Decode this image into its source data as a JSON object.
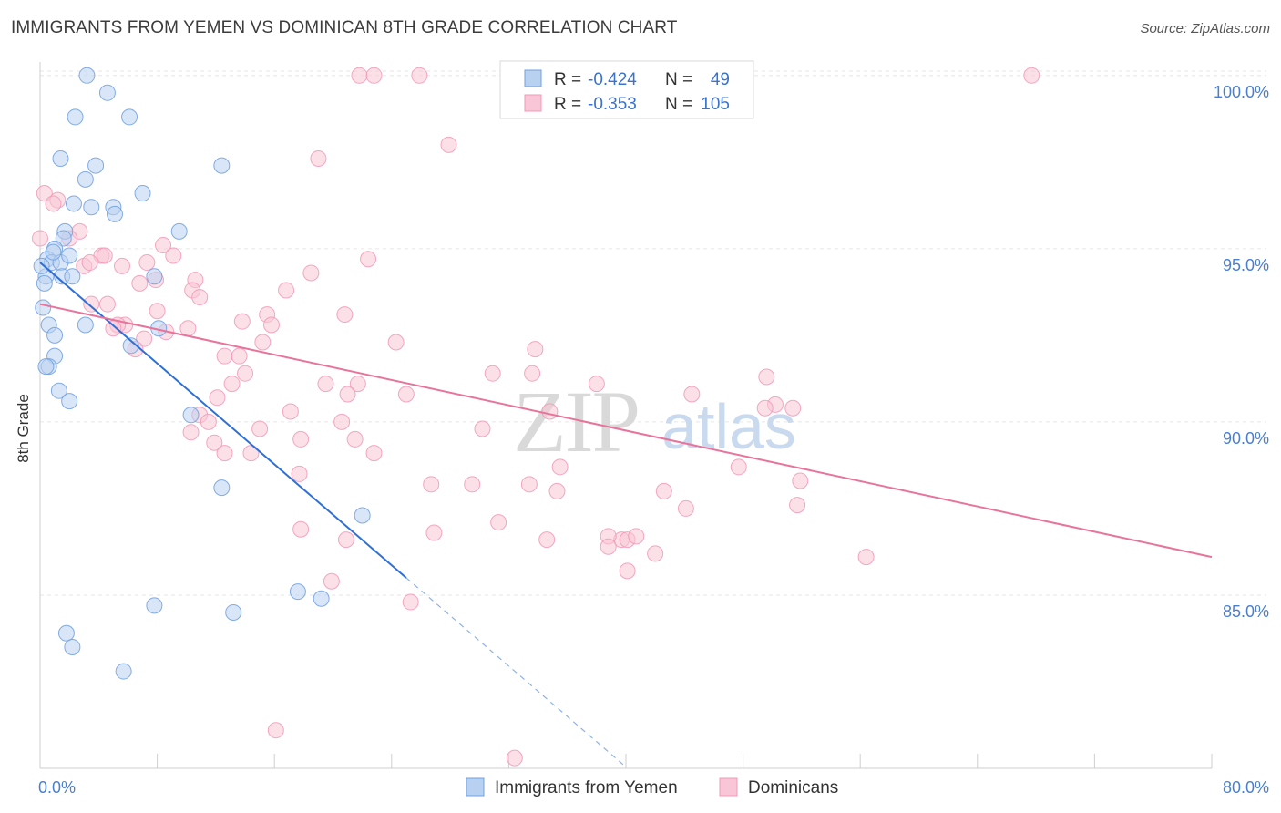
{
  "header": {
    "title": "IMMIGRANTS FROM YEMEN VS DOMINICAN 8TH GRADE CORRELATION CHART",
    "source": "Source: ZipAtlas.com"
  },
  "watermark": {
    "zip": "ZIP",
    "atlas": "atlas"
  },
  "legend_top": {
    "rows": [
      {
        "r_label": "R =",
        "r_value": "-0.424",
        "n_label": "N =",
        "n_value": "49",
        "color": "#6f9fe0"
      },
      {
        "r_label": "R =",
        "r_value": "-0.353",
        "n_label": "N =",
        "n_value": "105",
        "color": "#f199b6"
      }
    ]
  },
  "chart_data": {
    "type": "scatter",
    "title": "IMMIGRANTS FROM YEMEN VS DOMINICAN 8TH GRADE CORRELATION CHART",
    "xlabel": "",
    "ylabel": "8th Grade",
    "xlim": [
      0,
      80
    ],
    "ylim": [
      80,
      100.6
    ],
    "x_tick_labels": [
      "0.0%",
      "80.0%"
    ],
    "y_ticks": [
      85,
      90,
      95,
      100
    ],
    "y_tick_labels": [
      "85.0%",
      "90.0%",
      "95.0%",
      "100.0%"
    ],
    "grid": true,
    "legend_position": "bottom",
    "series": [
      {
        "name": "Immigrants from Yemen",
        "color": "#6f9fe0",
        "fill": "#b9d1f1",
        "r": -0.424,
        "n": 49,
        "trend": {
          "x0": 0.0,
          "y0": 94.6,
          "x1": 25.0,
          "y1": 85.5,
          "dash_to_x": 40.0
        },
        "points": [
          [
            3.2,
            100.0
          ],
          [
            4.6,
            99.5
          ],
          [
            2.4,
            98.8
          ],
          [
            6.1,
            98.8
          ],
          [
            1.4,
            97.6
          ],
          [
            3.8,
            97.4
          ],
          [
            12.4,
            97.4
          ],
          [
            3.1,
            97.0
          ],
          [
            7.0,
            96.6
          ],
          [
            2.3,
            96.3
          ],
          [
            3.5,
            96.2
          ],
          [
            5.0,
            96.2
          ],
          [
            5.1,
            96.0
          ],
          [
            1.7,
            95.5
          ],
          [
            9.5,
            95.5
          ],
          [
            1.6,
            95.3
          ],
          [
            1.0,
            95.0
          ],
          [
            0.5,
            94.7
          ],
          [
            0.8,
            94.6
          ],
          [
            1.4,
            94.6
          ],
          [
            2.0,
            94.8
          ],
          [
            0.4,
            94.2
          ],
          [
            1.5,
            94.2
          ],
          [
            2.2,
            94.2
          ],
          [
            7.8,
            94.2
          ],
          [
            0.3,
            94.0
          ],
          [
            0.2,
            93.3
          ],
          [
            0.6,
            92.8
          ],
          [
            3.1,
            92.8
          ],
          [
            8.1,
            92.7
          ],
          [
            1.0,
            92.5
          ],
          [
            6.2,
            92.2
          ],
          [
            1.0,
            91.9
          ],
          [
            0.6,
            91.6
          ],
          [
            0.4,
            91.6
          ],
          [
            1.3,
            90.9
          ],
          [
            2.0,
            90.6
          ],
          [
            10.3,
            90.2
          ],
          [
            12.4,
            88.1
          ],
          [
            22.0,
            87.3
          ],
          [
            17.6,
            85.1
          ],
          [
            19.2,
            84.9
          ],
          [
            7.8,
            84.7
          ],
          [
            13.2,
            84.5
          ],
          [
            1.8,
            83.9
          ],
          [
            2.2,
            83.5
          ],
          [
            5.7,
            82.8
          ],
          [
            0.1,
            94.5
          ],
          [
            0.9,
            94.9
          ]
        ]
      },
      {
        "name": "Dominicans",
        "color": "#f199b6",
        "fill": "#f8c6d6",
        "r": -0.353,
        "n": 105,
        "trend": {
          "x0": 0.0,
          "y0": 93.4,
          "x1": 80.0,
          "y1": 86.1
        },
        "points": [
          [
            21.8,
            100.0
          ],
          [
            22.8,
            100.0
          ],
          [
            25.9,
            100.0
          ],
          [
            32.0,
            100.0
          ],
          [
            67.7,
            100.0
          ],
          [
            27.9,
            98.0
          ],
          [
            19.0,
            97.6
          ],
          [
            0.3,
            96.6
          ],
          [
            1.2,
            96.4
          ],
          [
            0.9,
            96.3
          ],
          [
            2.7,
            95.5
          ],
          [
            2.0,
            95.3
          ],
          [
            0.0,
            95.3
          ],
          [
            8.4,
            95.1
          ],
          [
            4.2,
            94.8
          ],
          [
            4.4,
            94.8
          ],
          [
            9.1,
            94.8
          ],
          [
            7.3,
            94.6
          ],
          [
            22.4,
            94.7
          ],
          [
            3.0,
            94.5
          ],
          [
            3.4,
            94.6
          ],
          [
            5.6,
            94.5
          ],
          [
            18.5,
            94.3
          ],
          [
            7.9,
            94.1
          ],
          [
            10.6,
            94.1
          ],
          [
            6.8,
            94.0
          ],
          [
            10.4,
            93.8
          ],
          [
            16.8,
            93.8
          ],
          [
            10.9,
            93.6
          ],
          [
            3.5,
            93.4
          ],
          [
            4.6,
            93.4
          ],
          [
            8.0,
            93.2
          ],
          [
            20.8,
            93.1
          ],
          [
            15.5,
            93.1
          ],
          [
            13.8,
            92.9
          ],
          [
            5.8,
            92.8
          ],
          [
            5.3,
            92.8
          ],
          [
            15.8,
            92.8
          ],
          [
            5.0,
            92.7
          ],
          [
            10.1,
            92.7
          ],
          [
            8.6,
            92.6
          ],
          [
            7.1,
            92.4
          ],
          [
            24.3,
            92.3
          ],
          [
            15.2,
            92.3
          ],
          [
            6.5,
            92.1
          ],
          [
            33.8,
            92.1
          ],
          [
            12.6,
            91.9
          ],
          [
            13.6,
            91.9
          ],
          [
            30.9,
            91.4
          ],
          [
            33.6,
            91.4
          ],
          [
            14.0,
            91.4
          ],
          [
            13.1,
            91.1
          ],
          [
            19.5,
            91.1
          ],
          [
            21.7,
            91.1
          ],
          [
            38.0,
            91.1
          ],
          [
            49.6,
            91.3
          ],
          [
            12.1,
            90.7
          ],
          [
            21.0,
            90.8
          ],
          [
            25.0,
            90.8
          ],
          [
            44.5,
            90.8
          ],
          [
            50.2,
            90.5
          ],
          [
            51.4,
            90.4
          ],
          [
            34.8,
            90.3
          ],
          [
            17.1,
            90.3
          ],
          [
            10.9,
            90.2
          ],
          [
            20.6,
            90.0
          ],
          [
            11.5,
            90.0
          ],
          [
            10.3,
            89.7
          ],
          [
            15.0,
            89.8
          ],
          [
            30.2,
            89.8
          ],
          [
            17.8,
            89.5
          ],
          [
            21.5,
            89.5
          ],
          [
            11.9,
            89.4
          ],
          [
            12.6,
            89.1
          ],
          [
            14.4,
            89.1
          ],
          [
            35.5,
            88.7
          ],
          [
            47.7,
            88.7
          ],
          [
            17.7,
            88.5
          ],
          [
            29.5,
            88.2
          ],
          [
            33.4,
            88.2
          ],
          [
            26.7,
            88.2
          ],
          [
            51.9,
            88.3
          ],
          [
            35.3,
            88.0
          ],
          [
            42.6,
            88.0
          ],
          [
            44.1,
            87.5
          ],
          [
            51.7,
            87.6
          ],
          [
            31.3,
            87.1
          ],
          [
            17.8,
            86.9
          ],
          [
            20.9,
            86.6
          ],
          [
            26.9,
            86.8
          ],
          [
            34.6,
            86.6
          ],
          [
            39.7,
            86.6
          ],
          [
            38.8,
            86.7
          ],
          [
            40.1,
            86.6
          ],
          [
            38.8,
            86.4
          ],
          [
            42.0,
            86.2
          ],
          [
            56.4,
            86.1
          ],
          [
            40.1,
            85.7
          ],
          [
            19.9,
            85.4
          ],
          [
            25.3,
            84.8
          ],
          [
            16.1,
            81.1
          ],
          [
            32.4,
            80.3
          ],
          [
            49.5,
            90.4
          ],
          [
            22.8,
            89.1
          ],
          [
            40.7,
            86.7
          ]
        ]
      }
    ]
  },
  "legend_bottom": {
    "items": [
      {
        "label": "Immigrants from Yemen",
        "color": "#6f9fe0",
        "fill": "#b9d1f1"
      },
      {
        "label": "Dominicans",
        "color": "#f199b6",
        "fill": "#f8c6d6"
      }
    ]
  }
}
